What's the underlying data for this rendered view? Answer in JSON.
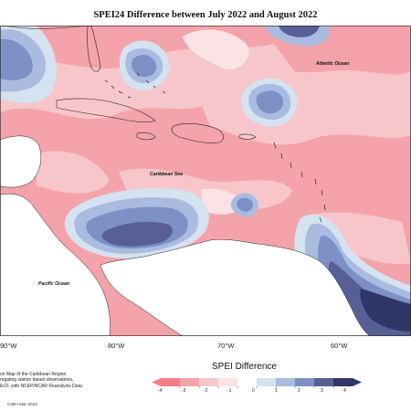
{
  "title": "SPEI24 Difference between July 2022 and August 2022",
  "map_labels": {
    "atlantic": "Atlantic Ocean",
    "caribbean": "Caribbean Sea",
    "pacific": "Pacific Ocean"
  },
  "lon_labels": [
    "90°W",
    "80°W",
    "70°W",
    "60°W"
  ],
  "legend": {
    "title": "SPEI Difference",
    "ticks": [
      "-4",
      "-3",
      "-2",
      "-1",
      "0",
      "1",
      "2",
      "3",
      "4"
    ],
    "colors": [
      "#f27d87",
      "#f4a3aa",
      "#f7c6ca",
      "#fbe2e4",
      "#ffffff",
      "#d5e2ef",
      "#a9bcdf",
      "#7d90c6",
      "#565f96",
      "#303668"
    ]
  },
  "source_lines": [
    "on Map of the Caribbean Region.",
    "regating station based observations,",
    "ECF, with NCEP/NCAR Reanalysis Data."
  ],
  "credit": "CIMH Mar-2023"
}
